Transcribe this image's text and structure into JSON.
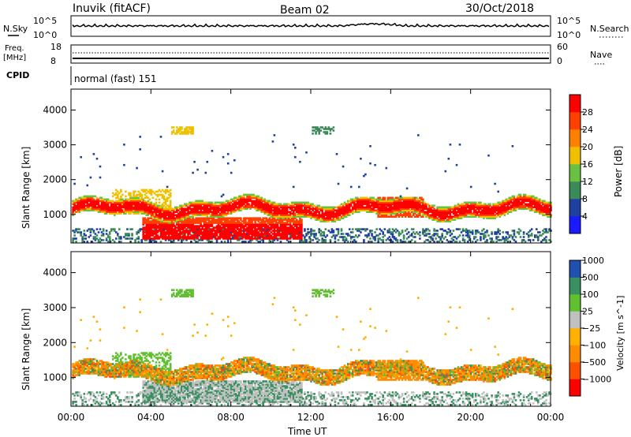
{
  "header": {
    "station": "Inuvik (fitACF)",
    "beam": "Beam 02",
    "date": "30/Oct/2018"
  },
  "aux_panel": {
    "nsky_label": "N.Sky",
    "nsearch_label": "N.Search",
    "freq_label_1": "Freq.",
    "freq_label_2": "[MHz]",
    "nave_label": "Nave",
    "cpid_label": "CPID",
    "cpid_value": "normal (fast) 151",
    "noise_left_ticks": [
      "10^5",
      "10^0"
    ],
    "noise_right_ticks": [
      "10^5",
      "10^0"
    ],
    "freq_ticks": [
      "18",
      "8"
    ],
    "nave_ticks": [
      "60",
      "0"
    ]
  },
  "colors": {
    "power_bins": [
      "#1a1aff",
      "#2040a0",
      "#3a8a5a",
      "#6ac040",
      "#f0c000",
      "#ff8000",
      "#ff4000",
      "#ff0000"
    ],
    "velocity_bins": [
      "#ff0000",
      "#ff5000",
      "#ff8c00",
      "#ffb000",
      "#c0c0c0",
      "#60c030",
      "#3a9060",
      "#2050b0"
    ]
  },
  "chart_data": [
    {
      "type": "heatmap",
      "title": "",
      "xlabel": "Time UT",
      "ylabel": "Slant Range [km]",
      "xticks": [
        "00:00",
        "04:00",
        "08:00",
        "12:00",
        "16:00",
        "20:00",
        "00:00"
      ],
      "yticks": [
        "1000",
        "2000",
        "3000",
        "4000"
      ],
      "ylim": [
        180,
        4600
      ],
      "colorbar_label": "Power [dB]",
      "colorbar_ticks": [
        "4",
        "8",
        "12",
        "16",
        "20",
        "24",
        "28"
      ],
      "features": [
        {
          "time_h": [
            0,
            24
          ],
          "range_km": [
            900,
            1400
          ],
          "value_db": 28,
          "note": "main echo band"
        },
        {
          "time_h": [
            3.5,
            11.5
          ],
          "range_km": [
            300,
            900
          ],
          "value_db": 28,
          "note": "near range strong echoes"
        },
        {
          "time_h": [
            15.5,
            17.5
          ],
          "range_km": [
            1000,
            1400
          ],
          "value_db": 24
        },
        {
          "time_h": [
            5,
            6
          ],
          "range_km": [
            3400,
            3500
          ],
          "value_db": 18
        },
        {
          "time_h": [
            12,
            13
          ],
          "range_km": [
            3300,
            3500
          ],
          "value_db": 10
        }
      ]
    },
    {
      "type": "heatmap",
      "title": "",
      "xlabel": "Time UT",
      "ylabel": "Slant Range [km]",
      "xticks": [
        "00:00",
        "04:00",
        "08:00",
        "12:00",
        "16:00",
        "20:00",
        "00:00"
      ],
      "yticks": [
        "1000",
        "2000",
        "3000",
        "4000"
      ],
      "ylim": [
        180,
        4600
      ],
      "colorbar_label": "Velocity [m s^-1]",
      "colorbar_ticks": [
        "1000",
        "500",
        "100",
        "25",
        "−25",
        "−100",
        "−500",
        "−1000"
      ],
      "features": [
        {
          "time_h": [
            0,
            24
          ],
          "range_km": [
            900,
            1400
          ],
          "value_ms": -100,
          "note": "main echo band"
        },
        {
          "time_h": [
            3.5,
            11.5
          ],
          "range_km": [
            300,
            900
          ],
          "value_ms": 0,
          "note": "ground scatter near range"
        },
        {
          "time_h": [
            2,
            5
          ],
          "range_km": [
            1000,
            1600
          ],
          "value_ms": 100
        }
      ]
    }
  ]
}
